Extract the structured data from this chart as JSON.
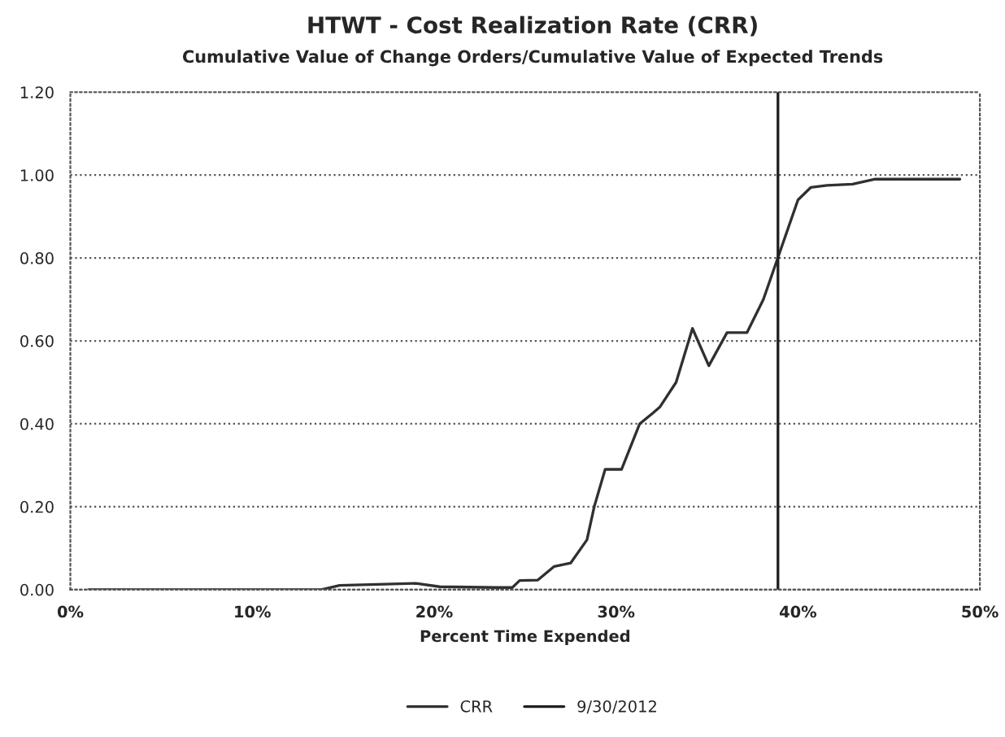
{
  "chart_data": {
    "type": "line",
    "title": "HTWT - Cost Realization Rate (CRR)",
    "subtitle": "Cumulative Value of Change Orders/Cumulative Value of Expected Trends",
    "xlabel": "Percent Time Expended",
    "xlim": [
      0,
      50
    ],
    "xticks": [
      {
        "value": 0,
        "label": "0%"
      },
      {
        "value": 10,
        "label": "10%"
      },
      {
        "value": 20,
        "label": "20%"
      },
      {
        "value": 30,
        "label": "30%"
      },
      {
        "value": 40,
        "label": "40%"
      },
      {
        "value": 50,
        "label": "50%"
      }
    ],
    "ylim": [
      0,
      1.2
    ],
    "yticks": [
      {
        "value": 0,
        "label": "0.00"
      },
      {
        "value": 0.2,
        "label": "0.20"
      },
      {
        "value": 0.4,
        "label": "0.40"
      },
      {
        "value": 0.6,
        "label": "0.60"
      },
      {
        "value": 0.8,
        "label": "0.80"
      },
      {
        "value": 1.0,
        "label": "1.00"
      },
      {
        "value": 1.2,
        "label": "1.20"
      }
    ],
    "grid": "y",
    "legend": "bottom",
    "marker": "none",
    "line_style": "solid",
    "series": [
      {
        "name": "CRR",
        "color": "#303030",
        "x": [
          1.0,
          13.8,
          14.8,
          19.0,
          20.3,
          23.4,
          24.3,
          24.7,
          25.7,
          26.6,
          27.5,
          28.4,
          28.8,
          29.4,
          30.3,
          31.3,
          32.0,
          32.4,
          33.3,
          34.2,
          35.1,
          36.1,
          37.2,
          38.1,
          40.0,
          40.7,
          41.6,
          43.0,
          44.2,
          48.9
        ],
        "values": [
          0,
          0,
          0.01,
          0.015,
          0.007,
          0.005,
          0.005,
          0.022,
          0.023,
          0.056,
          0.064,
          0.12,
          0.2,
          0.29,
          0.29,
          0.4,
          0.425,
          0.44,
          0.5,
          0.63,
          0.54,
          0.62,
          0.62,
          0.7,
          0.94,
          0.97,
          0.975,
          0.978,
          0.99,
          0.99
        ]
      },
      {
        "name": "9/30/2012",
        "color": "#202020",
        "x": [
          38.9,
          38.9
        ],
        "values": [
          0,
          1.2
        ]
      }
    ]
  }
}
